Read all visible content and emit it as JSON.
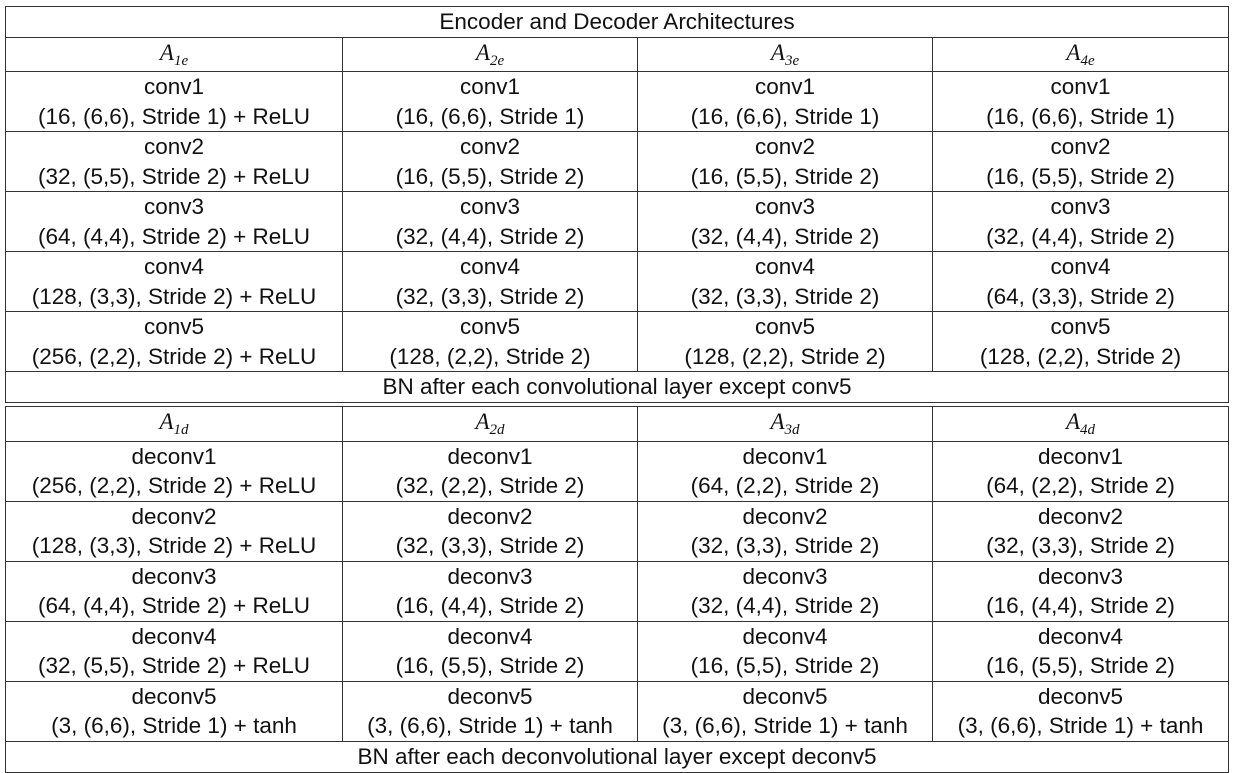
{
  "title": "Encoder and Decoder Architectures",
  "encoder": {
    "headers": [
      {
        "base": "A",
        "sub": "1e"
      },
      {
        "base": "A",
        "sub": "2e"
      },
      {
        "base": "A",
        "sub": "3e"
      },
      {
        "base": "A",
        "sub": "4e"
      }
    ],
    "rows": [
      [
        {
          "name": "conv1",
          "spec": "(16, (6,6), Stride 1) + ReLU"
        },
        {
          "name": "conv1",
          "spec": "(16, (6,6), Stride 1)"
        },
        {
          "name": "conv1",
          "spec": "(16, (6,6), Stride 1)"
        },
        {
          "name": "conv1",
          "spec": "(16, (6,6), Stride 1)"
        }
      ],
      [
        {
          "name": "conv2",
          "spec": "(32, (5,5), Stride 2) + ReLU"
        },
        {
          "name": "conv2",
          "spec": "(16, (5,5), Stride 2)"
        },
        {
          "name": "conv2",
          "spec": "(16, (5,5), Stride 2)"
        },
        {
          "name": "conv2",
          "spec": "(16, (5,5), Stride 2)"
        }
      ],
      [
        {
          "name": "conv3",
          "spec": "(64, (4,4), Stride 2) + ReLU"
        },
        {
          "name": "conv3",
          "spec": "(32, (4,4), Stride 2)"
        },
        {
          "name": "conv3",
          "spec": "(32, (4,4), Stride 2)"
        },
        {
          "name": "conv3",
          "spec": "(32, (4,4), Stride 2)"
        }
      ],
      [
        {
          "name": "conv4",
          "spec": "(128, (3,3), Stride 2) + ReLU"
        },
        {
          "name": "conv4",
          "spec": "(32, (3,3), Stride 2)"
        },
        {
          "name": "conv4",
          "spec": "(32, (3,3), Stride 2)"
        },
        {
          "name": "conv4",
          "spec": "(64, (3,3), Stride 2)"
        }
      ],
      [
        {
          "name": "conv5",
          "spec": "(256, (2,2), Stride 2) + ReLU"
        },
        {
          "name": "conv5",
          "spec": "(128, (2,2), Stride 2)"
        },
        {
          "name": "conv5",
          "spec": "(128, (2,2), Stride 2)"
        },
        {
          "name": "conv5",
          "spec": "(128, (2,2), Stride 2)"
        }
      ]
    ],
    "footer": "BN after each convolutional layer except conv5"
  },
  "decoder": {
    "headers": [
      {
        "base": "A",
        "sub": "1d"
      },
      {
        "base": "A",
        "sub": "2d"
      },
      {
        "base": "A",
        "sub": "3d"
      },
      {
        "base": "A",
        "sub": "4d"
      }
    ],
    "rows": [
      [
        {
          "name": "deconv1",
          "spec": "(256, (2,2), Stride 2) + ReLU"
        },
        {
          "name": "deconv1",
          "spec": "(32, (2,2), Stride 2)"
        },
        {
          "name": "deconv1",
          "spec": "(64, (2,2), Stride 2)"
        },
        {
          "name": "deconv1",
          "spec": "(64, (2,2), Stride 2)"
        }
      ],
      [
        {
          "name": "deconv2",
          "spec": "(128, (3,3), Stride 2) + ReLU"
        },
        {
          "name": "deconv2",
          "spec": "(32, (3,3), Stride 2)"
        },
        {
          "name": "deconv2",
          "spec": "(32, (3,3), Stride 2)"
        },
        {
          "name": "deconv2",
          "spec": "(32, (3,3), Stride 2)"
        }
      ],
      [
        {
          "name": "deconv3",
          "spec": "(64, (4,4), Stride 2) + ReLU"
        },
        {
          "name": "deconv3",
          "spec": "(16, (4,4), Stride 2)"
        },
        {
          "name": "deconv3",
          "spec": "(32, (4,4), Stride 2)"
        },
        {
          "name": "deconv3",
          "spec": "(16, (4,4), Stride 2)"
        }
      ],
      [
        {
          "name": "deconv4",
          "spec": "(32, (5,5), Stride 2) + ReLU"
        },
        {
          "name": "deconv4",
          "spec": "(16, (5,5), Stride 2)"
        },
        {
          "name": "deconv4",
          "spec": "(16, (5,5), Stride 2)"
        },
        {
          "name": "deconv4",
          "spec": "(16, (5,5), Stride 2)"
        }
      ],
      [
        {
          "name": "deconv5",
          "spec": "(3, (6,6), Stride 1) + tanh"
        },
        {
          "name": "deconv5",
          "spec": "(3, (6,6), Stride 1) + tanh"
        },
        {
          "name": "deconv5",
          "spec": "(3, (6,6), Stride 1) + tanh"
        },
        {
          "name": "deconv5",
          "spec": "(3, (6,6), Stride 1) + tanh"
        }
      ]
    ],
    "footer": "BN after each deconvolutional layer except deconv5"
  }
}
